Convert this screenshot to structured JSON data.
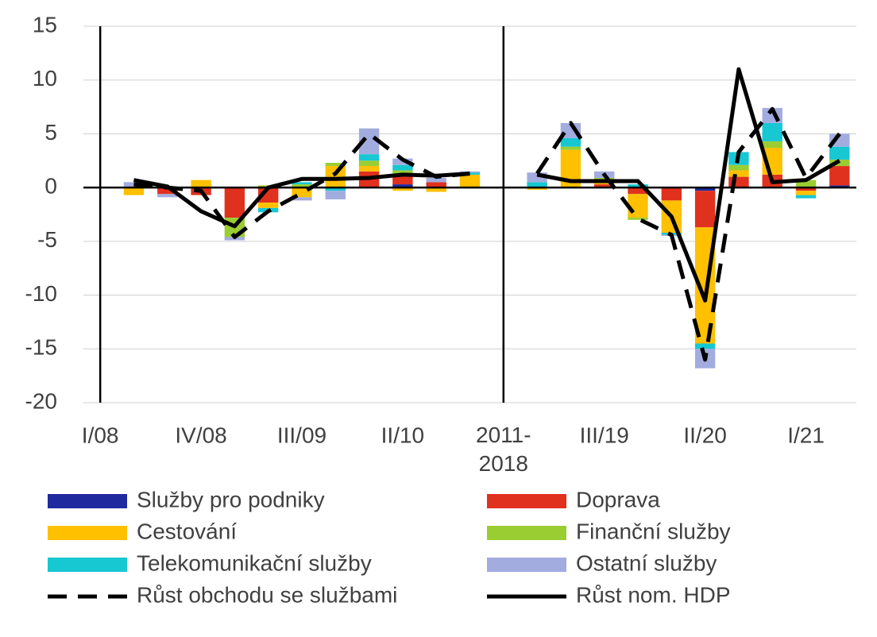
{
  "chart_data": {
    "type": "bar",
    "stacked": true,
    "categories": [
      "I/08",
      null,
      null,
      "IV/08",
      null,
      null,
      "III/09",
      null,
      null,
      "II/10",
      null,
      null,
      "2011-\n2018",
      null,
      null,
      "III/19",
      null,
      null,
      "II/20",
      null,
      null,
      "I/21",
      null
    ],
    "ylim": [
      -20,
      15
    ],
    "yticks": [
      -20,
      -15,
      -10,
      -5,
      0,
      5,
      10,
      15
    ],
    "grid": true,
    "series": [
      {
        "name": "Služby pro podniky",
        "color": "#1f2a9e",
        "values": [
          null,
          0,
          0,
          0,
          0,
          0,
          0,
          0,
          0,
          0.3,
          0,
          0,
          null,
          0,
          0,
          0,
          0,
          0,
          -0.3,
          0,
          0,
          0,
          0.2
        ]
      },
      {
        "name": "Doprava",
        "color": "#e0301e",
        "values": [
          null,
          0,
          -0.6,
          -0.7,
          -2.8,
          -1.4,
          0,
          0,
          1.5,
          0.8,
          0.5,
          0,
          null,
          0,
          0,
          0.3,
          -0.6,
          -1.2,
          -3.4,
          1.0,
          1.2,
          -0.3,
          1.8
        ]
      },
      {
        "name": "Cestování",
        "color": "#ffc000",
        "values": [
          null,
          -0.7,
          0,
          0.7,
          0,
          -0.5,
          -0.9,
          2.0,
          0.5,
          -0.3,
          -0.4,
          1.2,
          null,
          -0.2,
          3.5,
          0.3,
          -2.2,
          -3.0,
          -10.8,
          0.6,
          2.5,
          -0.4,
          0
        ]
      },
      {
        "name": "Finanční služby",
        "color": "#9acd32",
        "values": [
          null,
          0,
          0,
          0,
          -1.8,
          0.2,
          0.3,
          0.3,
          0.5,
          0.5,
          0,
          0,
          null,
          0,
          0.3,
          0.3,
          -0.2,
          0,
          0,
          0.5,
          0.6,
          0.7,
          0.6
        ]
      },
      {
        "name": "Telekomunikační služby",
        "color": "#17c7d2",
        "values": [
          null,
          0,
          0,
          0,
          0,
          -0.4,
          0.2,
          -0.3,
          0.6,
          0.5,
          0,
          0.2,
          null,
          0.5,
          0.8,
          0,
          0.3,
          -0.2,
          -0.5,
          1.2,
          1.7,
          -0.3,
          1.2
        ]
      },
      {
        "name": "Ostatní služby",
        "color": "#a2acdf",
        "values": [
          null,
          0.5,
          -0.3,
          0,
          -0.3,
          0,
          -0.3,
          -0.8,
          2.4,
          0.6,
          0.4,
          0.1,
          null,
          0.9,
          1.4,
          0.6,
          0,
          -0.1,
          -1.8,
          0,
          1.4,
          0,
          1.2
        ]
      },
      {
        "name": "Růst obchodu se službami",
        "type": "line",
        "style": "dashed",
        "color": "#000000",
        "values": [
          null,
          0.3,
          0,
          -0.3,
          -4.6,
          -2.2,
          -0.5,
          1.3,
          5.0,
          2.6,
          1.0,
          1.3,
          null,
          1.3,
          6.0,
          1.2,
          -2.9,
          -4.4,
          -16.0,
          3.3,
          7.3,
          0.9,
          5.0
        ]
      },
      {
        "name": "Růst nom. HDP",
        "type": "line",
        "style": "solid",
        "color": "#000000",
        "values": [
          null,
          0.7,
          0.1,
          -2.2,
          -3.6,
          0.0,
          0.8,
          0.8,
          0.9,
          1.2,
          1.1,
          1.3,
          null,
          1.2,
          0.6,
          0.6,
          0.6,
          -2.7,
          -10.5,
          11.0,
          0.5,
          0.7,
          2.5
        ]
      }
    ]
  }
}
